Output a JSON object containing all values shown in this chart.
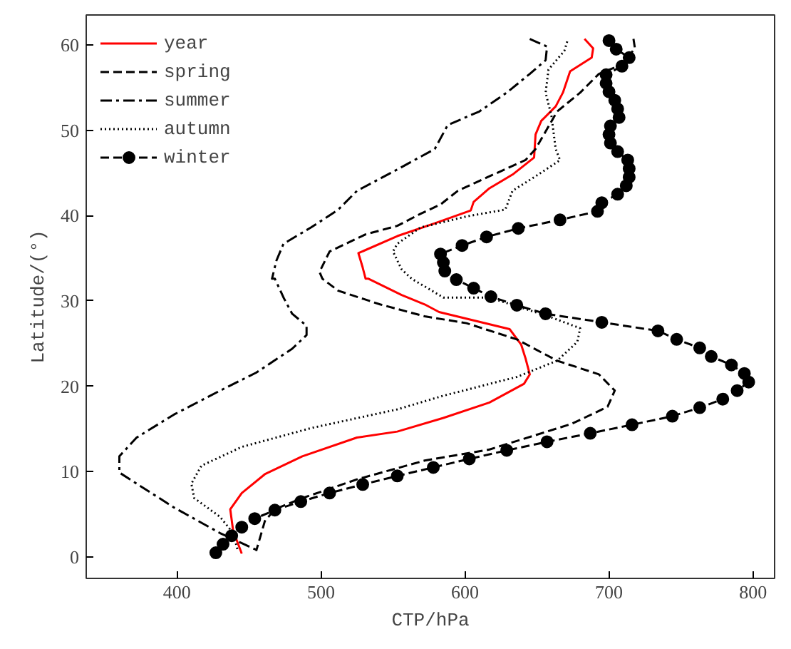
{
  "chart_data": {
    "type": "line",
    "xlabel": "CTP/hPa",
    "ylabel": "Latitude/(°)",
    "xlim": [
      337,
      815
    ],
    "ylim": [
      -2.5,
      63.5
    ],
    "xticks": [
      400,
      500,
      600,
      700,
      800
    ],
    "yticks": [
      0,
      10,
      20,
      30,
      40,
      50,
      60
    ],
    "grid": false,
    "legend": "top left",
    "series": [
      {
        "name": "year",
        "color": "#ff0000",
        "line_style": "solid",
        "marker": "none",
        "x": [
          683,
          689,
          688,
          673,
          668,
          663,
          653,
          649,
          648,
          633,
          617,
          606,
          604,
          579,
          553,
          526,
          529,
          531,
          533,
          556,
          572,
          582,
          631,
          639,
          642,
          645,
          641,
          617,
          585,
          553,
          525,
          487,
          461,
          445,
          437,
          439,
          445
        ],
        "values": [
          60.7,
          59.6,
          58.5,
          56.9,
          54.4,
          52.8,
          51.1,
          49.5,
          46.8,
          44.8,
          43.2,
          41.6,
          40.6,
          39.1,
          37.6,
          35.6,
          33.9,
          32.6,
          32.6,
          30.7,
          29.6,
          28.7,
          26.7,
          24.9,
          23.3,
          21.4,
          20.3,
          18.1,
          16.3,
          14.7,
          14.0,
          11.8,
          9.7,
          7.5,
          5.6,
          3.1,
          0.4
        ]
      },
      {
        "name": "spring",
        "color": "#000000",
        "line_style": "dashed",
        "marker": "none",
        "x": [
          717,
          718,
          709,
          693,
          680,
          664,
          649,
          642,
          617,
          595,
          583,
          569,
          553,
          531,
          506,
          499,
          501,
          512,
          541,
          572,
          601,
          636,
          664,
          693,
          704,
          699,
          674,
          617,
          572,
          525,
          487,
          468,
          461,
          455
        ],
        "values": [
          60.7,
          59.6,
          57.7,
          56.6,
          54.4,
          52.2,
          47.8,
          46.5,
          44.6,
          42.9,
          41.3,
          40.2,
          38.8,
          37.8,
          35.8,
          33.4,
          32.6,
          31.2,
          29.6,
          28.2,
          27.4,
          25.5,
          23.0,
          21.4,
          19.5,
          17.6,
          15.6,
          12.6,
          11.3,
          9.1,
          6.9,
          5.6,
          4.2,
          0.7
        ]
      },
      {
        "name": "summer",
        "color": "#000000",
        "line_style": "dashdot",
        "marker": "none",
        "x": [
          645,
          657,
          656,
          645,
          629,
          610,
          588,
          579,
          553,
          525,
          512,
          493,
          474,
          469,
          466,
          468,
          474,
          480,
          490,
          490,
          480,
          455,
          430,
          398,
          372,
          360,
          360,
          372,
          398,
          430,
          457
        ],
        "values": [
          60.7,
          59.8,
          58.2,
          56.6,
          54.4,
          52.2,
          50.6,
          47.8,
          45.4,
          42.9,
          40.7,
          38.6,
          36.7,
          34.7,
          32.6,
          32.6,
          30.4,
          28.5,
          27.1,
          26.0,
          24.4,
          21.6,
          19.5,
          16.7,
          14.0,
          11.8,
          9.9,
          8.6,
          5.8,
          2.8,
          0.7
        ]
      },
      {
        "name": "autumn",
        "color": "#000000",
        "line_style": "dotted",
        "marker": "none",
        "x": [
          671,
          669,
          658,
          656,
          660,
          663,
          666,
          649,
          633,
          628,
          601,
          569,
          553,
          550,
          556,
          563,
          585,
          617,
          658,
          680,
          678,
          664,
          636,
          585,
          553,
          493,
          445,
          417,
          410,
          412,
          430,
          439,
          442
        ],
        "values": [
          60.4,
          59.3,
          57.1,
          54.4,
          51.7,
          47.8,
          46.5,
          44.6,
          42.9,
          40.7,
          39.9,
          38.6,
          36.7,
          35.8,
          33.7,
          32.6,
          30.4,
          30.4,
          28.2,
          26.8,
          25.2,
          23.0,
          21.1,
          18.9,
          17.3,
          15.1,
          12.9,
          10.7,
          8.6,
          6.9,
          4.7,
          2.8,
          0.9
        ]
      },
      {
        "name": "winter",
        "color": "#000000",
        "line_style": "dashed",
        "marker": "circle",
        "x": [
          700,
          705,
          714,
          709,
          698,
          698,
          700,
          704,
          706,
          707,
          701,
          700,
          701,
          706,
          713,
          714,
          714,
          712,
          706,
          695,
          692,
          666,
          637,
          615,
          598,
          583,
          585,
          586,
          594,
          606,
          618,
          636,
          656,
          695,
          734,
          747,
          763,
          771,
          785,
          794,
          797,
          789,
          779,
          763,
          744,
          716,
          687,
          657,
          629,
          603,
          578,
          553,
          529,
          506,
          486,
          468,
          454,
          445,
          438,
          432,
          427
        ],
        "values": [
          60.5,
          59.5,
          58.5,
          57.5,
          56.5,
          55.5,
          54.5,
          53.5,
          52.5,
          51.5,
          50.5,
          49.5,
          48.5,
          47.5,
          46.5,
          45.5,
          44.5,
          43.5,
          42.5,
          41.5,
          40.5,
          39.5,
          38.5,
          37.5,
          36.5,
          35.5,
          34.5,
          33.5,
          32.5,
          31.5,
          30.5,
          29.5,
          28.5,
          27.5,
          26.5,
          25.5,
          24.5,
          23.5,
          22.5,
          21.5,
          20.5,
          19.5,
          18.5,
          17.5,
          16.5,
          15.5,
          14.5,
          13.5,
          12.5,
          11.5,
          10.5,
          9.5,
          8.5,
          7.5,
          6.5,
          5.5,
          4.5,
          3.5,
          2.5,
          1.5,
          0.5
        ]
      }
    ]
  }
}
